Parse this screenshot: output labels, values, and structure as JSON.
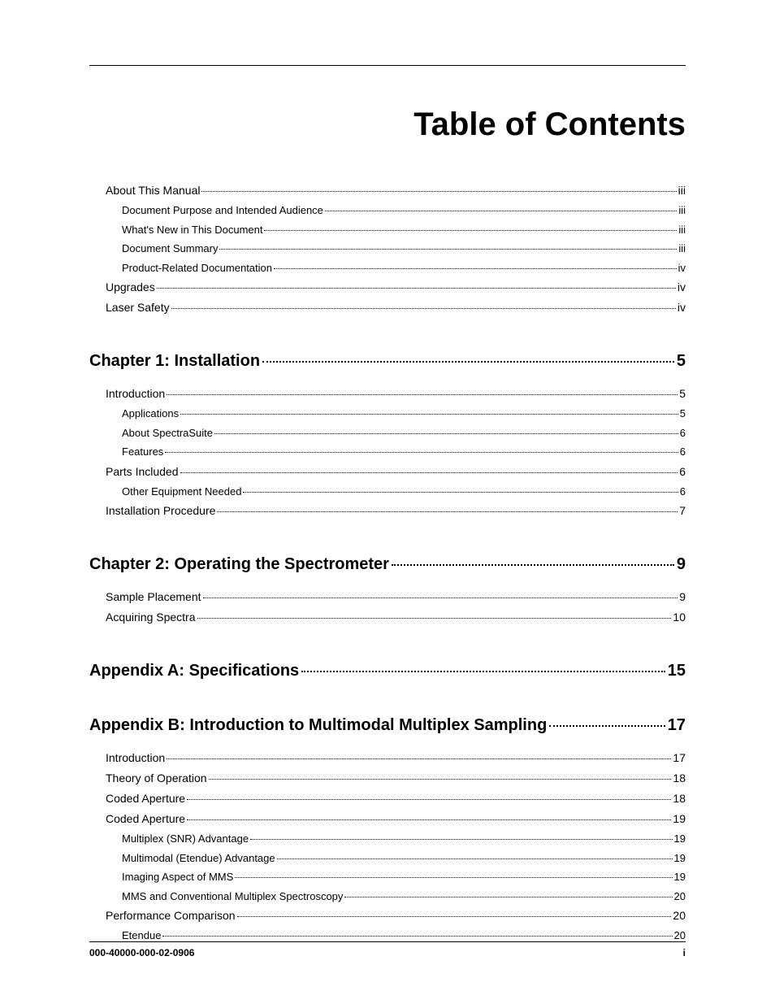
{
  "title": "Table of Contents",
  "footer": {
    "left": "000-40000-000-02-0906",
    "right": "i"
  },
  "sections": [
    {
      "heading": null,
      "items": [
        {
          "level": 1,
          "label": "About This Manual",
          "page": "iii"
        },
        {
          "level": 2,
          "label": "Document Purpose and Intended Audience",
          "page": "iii"
        },
        {
          "level": 2,
          "label": "What's New in This Document",
          "page": "iii"
        },
        {
          "level": 2,
          "label": "Document Summary",
          "page": "iii"
        },
        {
          "level": 2,
          "label": "Product-Related Documentation",
          "page": "iv"
        },
        {
          "level": 1,
          "label": "Upgrades",
          "page": "iv"
        },
        {
          "level": 1,
          "label": "Laser Safety",
          "page": "iv"
        }
      ]
    },
    {
      "heading": {
        "label": "Chapter 1: Installation",
        "page": "5"
      },
      "items": [
        {
          "level": 1,
          "label": "Introduction",
          "page": "5"
        },
        {
          "level": 2,
          "label": "Applications",
          "page": "5"
        },
        {
          "level": 2,
          "label": "About SpectraSuite",
          "page": "6"
        },
        {
          "level": 2,
          "label": "Features",
          "page": "6"
        },
        {
          "level": 1,
          "label": "Parts Included",
          "page": "6"
        },
        {
          "level": 2,
          "label": "Other Equipment Needed",
          "page": "6"
        },
        {
          "level": 1,
          "label": "Installation Procedure",
          "page": "7"
        }
      ]
    },
    {
      "heading": {
        "label": "Chapter 2: Operating the Spectrometer",
        "page": "9"
      },
      "items": [
        {
          "level": 1,
          "label": "Sample Placement",
          "page": "9"
        },
        {
          "level": 1,
          "label": "Acquiring Spectra",
          "page": "10"
        }
      ]
    },
    {
      "heading": {
        "label": "Appendix A: Specifications",
        "page": "15"
      },
      "items": []
    },
    {
      "heading": {
        "label": "Appendix B: Introduction to Multimodal Multiplex Sampling",
        "page": "17"
      },
      "items": [
        {
          "level": 1,
          "label": "Introduction",
          "page": "17"
        },
        {
          "level": 1,
          "label": "Theory of Operation",
          "page": "18"
        },
        {
          "level": 1,
          "label": "Coded Aperture",
          "page": "18"
        },
        {
          "level": 1,
          "label": "Coded Aperture",
          "page": "19"
        },
        {
          "level": 2,
          "label": "Multiplex (SNR) Advantage",
          "page": "19"
        },
        {
          "level": 2,
          "label": "Multimodal (Etendue) Advantage",
          "page": "19"
        },
        {
          "level": 2,
          "label": "Imaging Aspect of MMS",
          "page": "19"
        },
        {
          "level": 2,
          "label": "MMS and Conventional Multiplex Spectroscopy",
          "page": "20"
        },
        {
          "level": 1,
          "label": "Performance Comparison",
          "page": "20"
        },
        {
          "level": 2,
          "label": "Etendue",
          "page": "20"
        }
      ]
    }
  ]
}
